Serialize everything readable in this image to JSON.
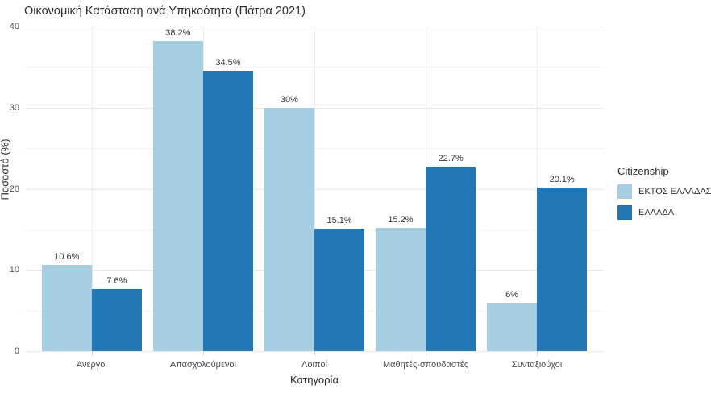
{
  "title": "Οικονομική Κατάσταση ανά Υπηκοότητα (Πάτρα 2021)",
  "chart_data": {
    "type": "bar",
    "grouped": "dodge",
    "title": "Οικονομική Κατάσταση ανά Υπηκοότητα (Πάτρα 2021)",
    "xlabel": "Κατηγορία",
    "ylabel": "Ποσοστό (%)",
    "categories": [
      "Άνεργοι",
      "Απασχολούμενοι",
      "Λοιποί",
      "Μαθητές-σπουδαστές",
      "Συνταξιούχοι"
    ],
    "series": [
      {
        "name": "ΕΚΤΟΣ ΕΛΛΑΔΑΣ",
        "color": "#a6cee3",
        "values": [
          10.6,
          38.2,
          30,
          15.2,
          6
        ],
        "labels": [
          "10.6%",
          "38.2%",
          "30%",
          "15.2%",
          "6%"
        ]
      },
      {
        "name": "ΕΛΛΑΔΑ",
        "color": "#2176b4",
        "values": [
          7.6,
          34.5,
          15.1,
          22.7,
          20.1
        ],
        "labels": [
          "7.6%",
          "34.5%",
          "15.1%",
          "22.7%",
          "20.1%"
        ]
      }
    ],
    "ylim": [
      0,
      40
    ],
    "yticks": [
      0,
      10,
      20,
      30,
      40
    ],
    "ytick_labels": [
      "0",
      "10",
      "20",
      "30",
      "40"
    ],
    "grid": "on",
    "legend_title": "Citizenship",
    "legend_position": "right",
    "colors": {
      "background": "#ffffff",
      "grid_major": "#e8e8e8",
      "grid_minor": "#f3f3f3",
      "text": "#2b2b2b",
      "tick_text": "#4d4d4d"
    }
  }
}
